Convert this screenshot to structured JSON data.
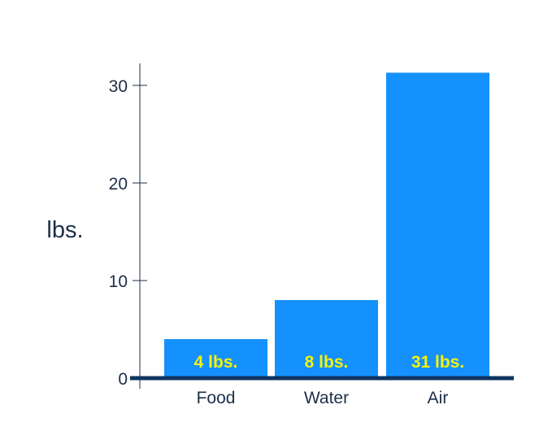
{
  "chart_data": {
    "type": "bar",
    "categories": [
      "Food",
      "Water",
      "Air"
    ],
    "values": [
      4,
      8,
      31.3
    ],
    "data_labels": [
      "4 lbs.",
      "8 lbs.",
      "31 lbs."
    ],
    "title": "",
    "xlabel": "",
    "ylabel": "lbs.",
    "ylim": [
      0,
      32.5
    ],
    "yticks": [
      0,
      10,
      20,
      30
    ],
    "ytick_labels": [
      "0",
      "10",
      "20",
      "30"
    ],
    "grid": false,
    "legend": "none"
  },
  "colors": {
    "bar": "#1591fd",
    "axis": "#1c2f4a",
    "baseline": "#0f3460",
    "data_label": "#f3f30a"
  }
}
